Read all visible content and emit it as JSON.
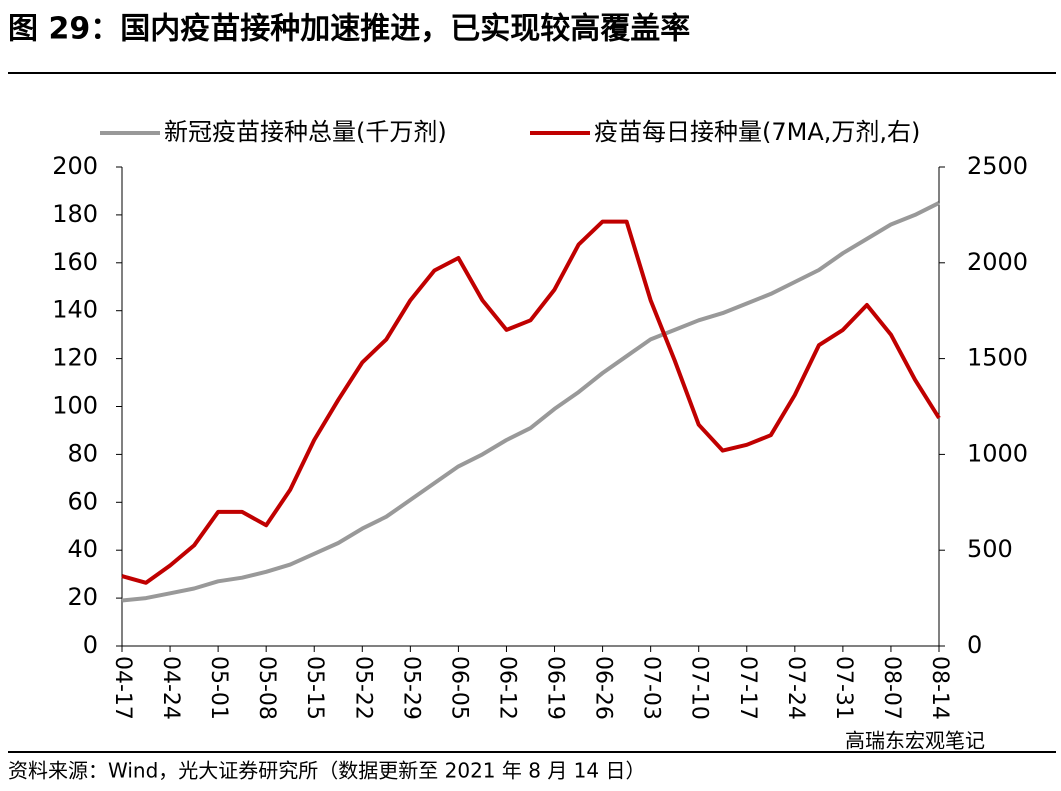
{
  "chart_data": {
    "type": "line",
    "title": "图 29：国内疫苗接种加速推进，已实现较高覆盖率",
    "source": "资料来源：Wind，光大证券研究所（数据更新至 2021 年 8 月 14 日）",
    "watermark": "高瑞东宏观笔记",
    "categories": [
      "04-17",
      null,
      "04-24",
      null,
      "05-01",
      null,
      "05-08",
      null,
      "05-15",
      null,
      "05-22",
      null,
      "05-29",
      null,
      "06-05",
      null,
      "06-12",
      null,
      "06-19",
      null,
      "06-26",
      null,
      "07-03",
      null,
      "07-10",
      null,
      "07-17",
      null,
      "07-24",
      null,
      "07-31",
      null,
      "08-07",
      null,
      "08-14"
    ],
    "series": [
      {
        "name": "新冠疫苗接种总量(千万剂)",
        "color": "#999999",
        "axis": "y",
        "values": [
          19,
          20,
          22,
          24,
          27,
          28.5,
          31,
          34,
          38.5,
          43,
          49,
          54,
          61,
          68,
          75,
          80,
          86,
          91,
          99,
          106,
          114,
          121,
          128,
          132,
          136,
          139,
          143,
          147,
          152,
          157,
          164,
          170,
          176,
          180,
          185
        ]
      },
      {
        "name": "疫苗每日接种量(7MA,万剂,右)",
        "color": "#c00000",
        "axis": "y2",
        "values": [
          365,
          330,
          420,
          525,
          700,
          700,
          630,
          815,
          1075,
          1285,
          1480,
          1600,
          1805,
          1960,
          2025,
          1805,
          1650,
          1700,
          1860,
          2095,
          2215,
          2215,
          1805,
          1490,
          1155,
          1020,
          1050,
          1100,
          1310,
          1570,
          1650,
          1780,
          1625,
          1390,
          1190
        ]
      }
    ],
    "ylim": [
      0,
      200
    ],
    "yticks": [
      0,
      20,
      40,
      60,
      80,
      100,
      120,
      140,
      160,
      180,
      200
    ],
    "y2lim": [
      0,
      2500
    ],
    "y2ticks": [
      0,
      500,
      1000,
      1500,
      2000,
      2500
    ],
    "legend": "top"
  }
}
